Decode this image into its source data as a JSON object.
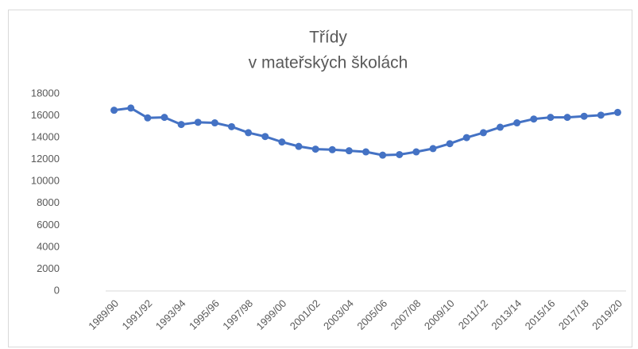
{
  "chart_data": {
    "type": "line",
    "title": [
      "Třídy",
      "v mateřských školách"
    ],
    "categories": [
      "1989/90",
      null,
      "1991/92",
      null,
      "1993/94",
      null,
      "1995/96",
      null,
      "1997/98",
      null,
      "1999/00",
      null,
      "2001/02",
      null,
      "2003/04",
      null,
      "2005/06",
      null,
      "2007/08",
      null,
      "2009/10",
      null,
      "2011/12",
      null,
      "2013/14",
      null,
      "2015/16",
      null,
      "2017/18",
      null,
      "2019/20"
    ],
    "series": [
      {
        "name": "Třídy",
        "color": "#4472c4",
        "values": [
          16500,
          16700,
          15800,
          15850,
          15200,
          15400,
          15350,
          15000,
          14450,
          14100,
          13600,
          13200,
          12950,
          12900,
          12800,
          12700,
          12400,
          12450,
          12700,
          13000,
          13450,
          14000,
          14450,
          14950,
          15350,
          15700,
          15850,
          15850,
          15950,
          16050,
          16300
        ]
      }
    ],
    "ylim": [
      0,
      18000
    ],
    "yticks": [
      0,
      2000,
      4000,
      6000,
      8000,
      10000,
      12000,
      14000,
      16000,
      18000
    ],
    "grid": false
  }
}
